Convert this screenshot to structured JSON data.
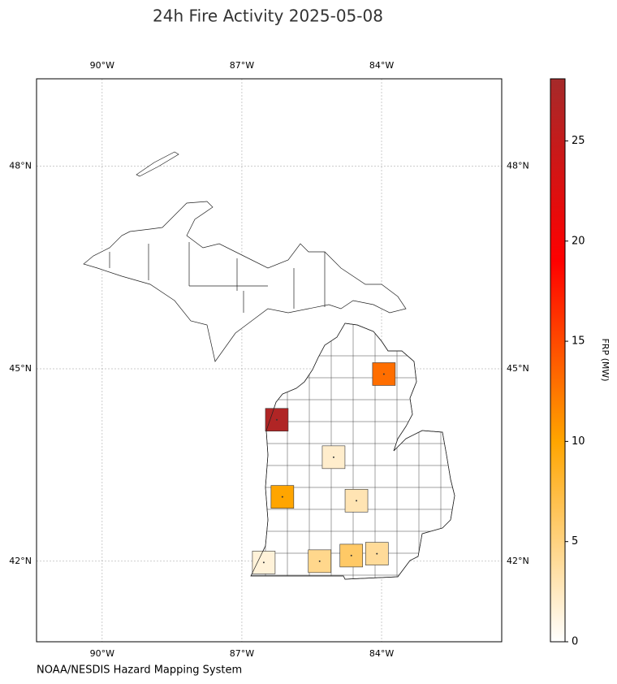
{
  "chart_data": {
    "type": "map",
    "title": "24h Fire Activity 2025-05-08",
    "source": "NOAA/NESDIS Hazard Mapping System",
    "xlim": [
      -91.41,
      -81.42
    ],
    "ylim": [
      40.7,
      49.24
    ],
    "xticks": [
      {
        "value": -90,
        "label": "90°W"
      },
      {
        "value": -87,
        "label": "87°W"
      },
      {
        "value": -84,
        "label": "84°W"
      }
    ],
    "yticks": [
      {
        "value": 42,
        "label": "42°N"
      },
      {
        "value": 45,
        "label": "45°N"
      },
      {
        "value": 48,
        "label": "48°N"
      }
    ],
    "grid": true,
    "fires": {
      "lon": [
        -86.25,
        -83.95,
        -86.13,
        -85.03,
        -84.54,
        -84.65,
        -84.1,
        -85.33,
        -86.53
      ],
      "lat": [
        44.22,
        44.92,
        43.02,
        43.64,
        42.96,
        42.09,
        42.12,
        42.0,
        41.98
      ],
      "frp": [
        27,
        13,
        10,
        2,
        3,
        6,
        4,
        4.5,
        1.5
      ]
    },
    "colorbar": {
      "label": "FRP (MW)",
      "lim": [
        0,
        28.1
      ],
      "ticks": [
        0,
        5,
        10,
        15,
        20,
        25
      ],
      "stops": [
        {
          "value": 0,
          "color": "#ffffff"
        },
        {
          "value": 10,
          "color": "#ffa500"
        },
        {
          "value": 19,
          "color": "#ff0000"
        },
        {
          "value": 28.1,
          "color": "#a52a2a"
        }
      ]
    }
  }
}
